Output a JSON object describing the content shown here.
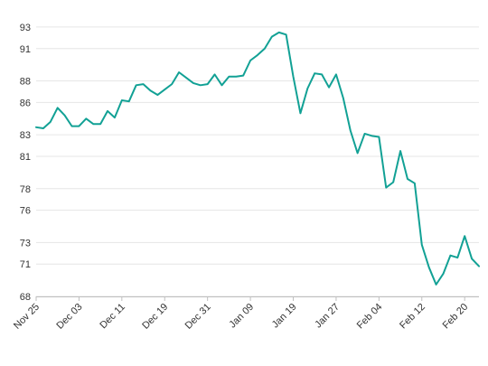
{
  "chart_data": {
    "type": "line",
    "title": "",
    "xlabel": "",
    "ylabel": "",
    "ylim": [
      68,
      94
    ],
    "y_ticks": [
      68,
      71,
      73,
      76,
      78,
      81,
      83,
      86,
      88,
      91,
      93
    ],
    "x_ticks": [
      {
        "label": "Nov 25",
        "index": 0
      },
      {
        "label": "Dec 03",
        "index": 6
      },
      {
        "label": "Dec 11",
        "index": 12
      },
      {
        "label": "Dec 19",
        "index": 18
      },
      {
        "label": "Dec 31",
        "index": 24
      },
      {
        "label": "Jan 09",
        "index": 30
      },
      {
        "label": "Jan 19",
        "index": 36
      },
      {
        "label": "Jan 27",
        "index": 42
      },
      {
        "label": "Feb 04",
        "index": 48
      },
      {
        "label": "Feb 12",
        "index": 54
      },
      {
        "label": "Feb 20",
        "index": 60
      }
    ],
    "grid": {
      "horizontal": true,
      "vertical": false
    },
    "legend": "none",
    "series": [
      {
        "color": "#12a195",
        "values": [
          83.7,
          83.6,
          84.2,
          85.5,
          84.8,
          83.8,
          83.8,
          84.5,
          84.0,
          84.0,
          85.2,
          84.6,
          86.2,
          86.1,
          87.6,
          87.7,
          87.1,
          86.7,
          87.2,
          87.7,
          88.8,
          88.3,
          87.8,
          87.6,
          87.7,
          88.6,
          87.6,
          88.4,
          88.4,
          88.5,
          89.9,
          90.4,
          91.0,
          92.1,
          92.5,
          92.3,
          88.4,
          85.0,
          87.3,
          88.7,
          88.6,
          87.4,
          88.6,
          86.4,
          83.4,
          81.3,
          83.1,
          82.9,
          82.8,
          78.1,
          78.6,
          81.5,
          78.9,
          78.5,
          72.8,
          70.7,
          69.1,
          70.1,
          71.8,
          71.6,
          73.6,
          71.5,
          70.8
        ]
      }
    ]
  }
}
